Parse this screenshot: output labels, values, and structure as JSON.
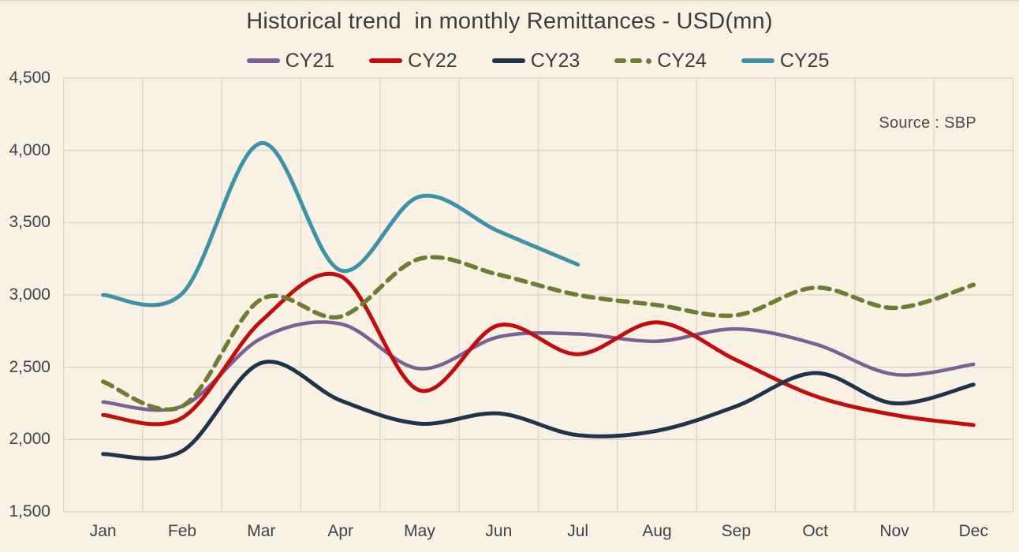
{
  "title": "Historical trend  in monthly Remittances - USD(mn)",
  "source_note": "Source : SBP",
  "colors": {
    "background": "#FAF1E5",
    "grid": "#D9D4CC",
    "title_text": "#3C3C3C",
    "axis_text": "#3E424A",
    "source_text": "#4A4A4A"
  },
  "chart_data": {
    "type": "line",
    "title": "Historical trend  in monthly Remittances - USD(mn)",
    "xlabel": "",
    "ylabel": "",
    "categories": [
      "Jan",
      "Feb",
      "Mar",
      "Apr",
      "May",
      "Jun",
      "Jul",
      "Aug",
      "Sep",
      "Oct",
      "Nov",
      "Dec"
    ],
    "series": [
      {
        "name": "CY21",
        "color": "#7B5F95",
        "dash": false,
        "values": [
          2260,
          2230,
          2700,
          2800,
          2490,
          2710,
          2730,
          2680,
          2765,
          2660,
          2450,
          2520
        ]
      },
      {
        "name": "CY22",
        "color": "#C20D0D",
        "dash": false,
        "values": [
          2170,
          2150,
          2820,
          3130,
          2340,
          2790,
          2590,
          2810,
          2550,
          2300,
          2170,
          2100
        ]
      },
      {
        "name": "CY23",
        "color": "#1F3449",
        "dash": false,
        "values": [
          1900,
          1920,
          2530,
          2270,
          2110,
          2180,
          2030,
          2060,
          2230,
          2460,
          2250,
          2380
        ]
      },
      {
        "name": "CY24",
        "color": "#6E7D33",
        "dash": true,
        "values": [
          2400,
          2230,
          2970,
          2850,
          3250,
          3140,
          3000,
          2930,
          2860,
          3050,
          2910,
          3070
        ]
      },
      {
        "name": "CY25",
        "color": "#3C92A8",
        "dash": false,
        "values": [
          3000,
          3010,
          4050,
          3170,
          3680,
          3440,
          3210,
          null,
          null,
          null,
          null,
          null
        ]
      }
    ],
    "ylim": [
      1500,
      4500
    ],
    "ytick_step": 500,
    "ytick_labels": [
      "4,500",
      "4,000",
      "3,500",
      "3,000",
      "2,500",
      "2,000",
      "1,500"
    ],
    "grid": true,
    "legend_position": "top"
  }
}
